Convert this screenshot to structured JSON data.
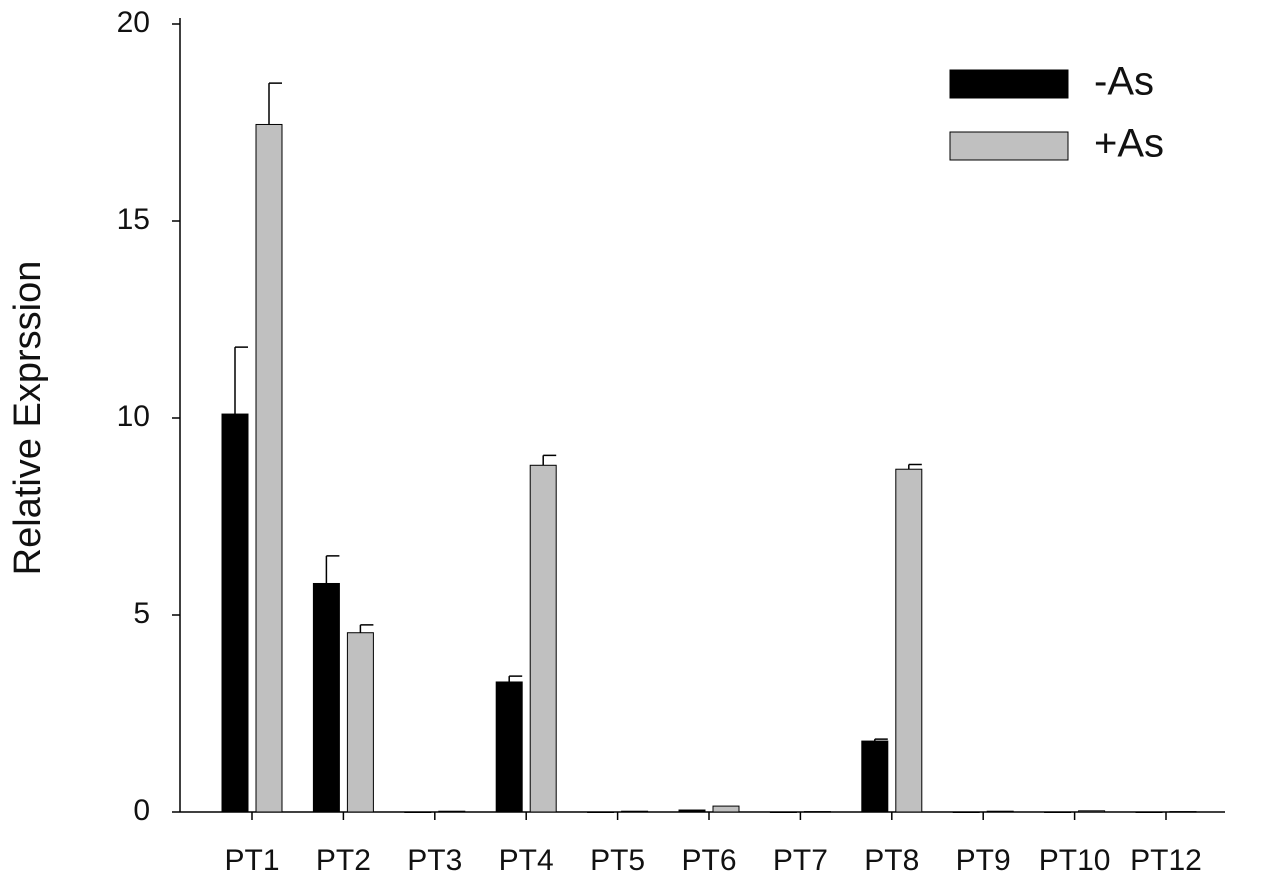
{
  "chart_data": {
    "type": "bar",
    "y_label": "Relative Exprssion",
    "categories": [
      "PT1",
      "PT2",
      "PT3",
      "PT4",
      "PT5",
      "PT6",
      "PT7",
      "PT8",
      "PT9",
      "PT10",
      "PT12"
    ],
    "series": [
      {
        "name": "-As",
        "color": "#000000",
        "values": [
          10.1,
          5.8,
          0,
          3.3,
          0,
          0.05,
          0,
          1.8,
          0,
          0,
          0
        ],
        "errors": [
          1.7,
          0.7,
          0,
          0.15,
          0,
          0,
          0,
          0.05,
          0,
          0,
          0
        ]
      },
      {
        "name": "+As",
        "color": "#c0c0c0",
        "values": [
          17.45,
          4.55,
          0.02,
          8.8,
          0.02,
          0.15,
          0.01,
          8.7,
          0.02,
          0.03,
          0.01
        ],
        "errors": [
          1.05,
          0.2,
          0,
          0.25,
          0,
          0,
          0,
          0.12,
          0,
          0,
          0
        ]
      }
    ],
    "ylim": [
      0,
      20
    ],
    "yticks": [
      0,
      5,
      10,
      15,
      20
    ],
    "legend": "upper right"
  }
}
